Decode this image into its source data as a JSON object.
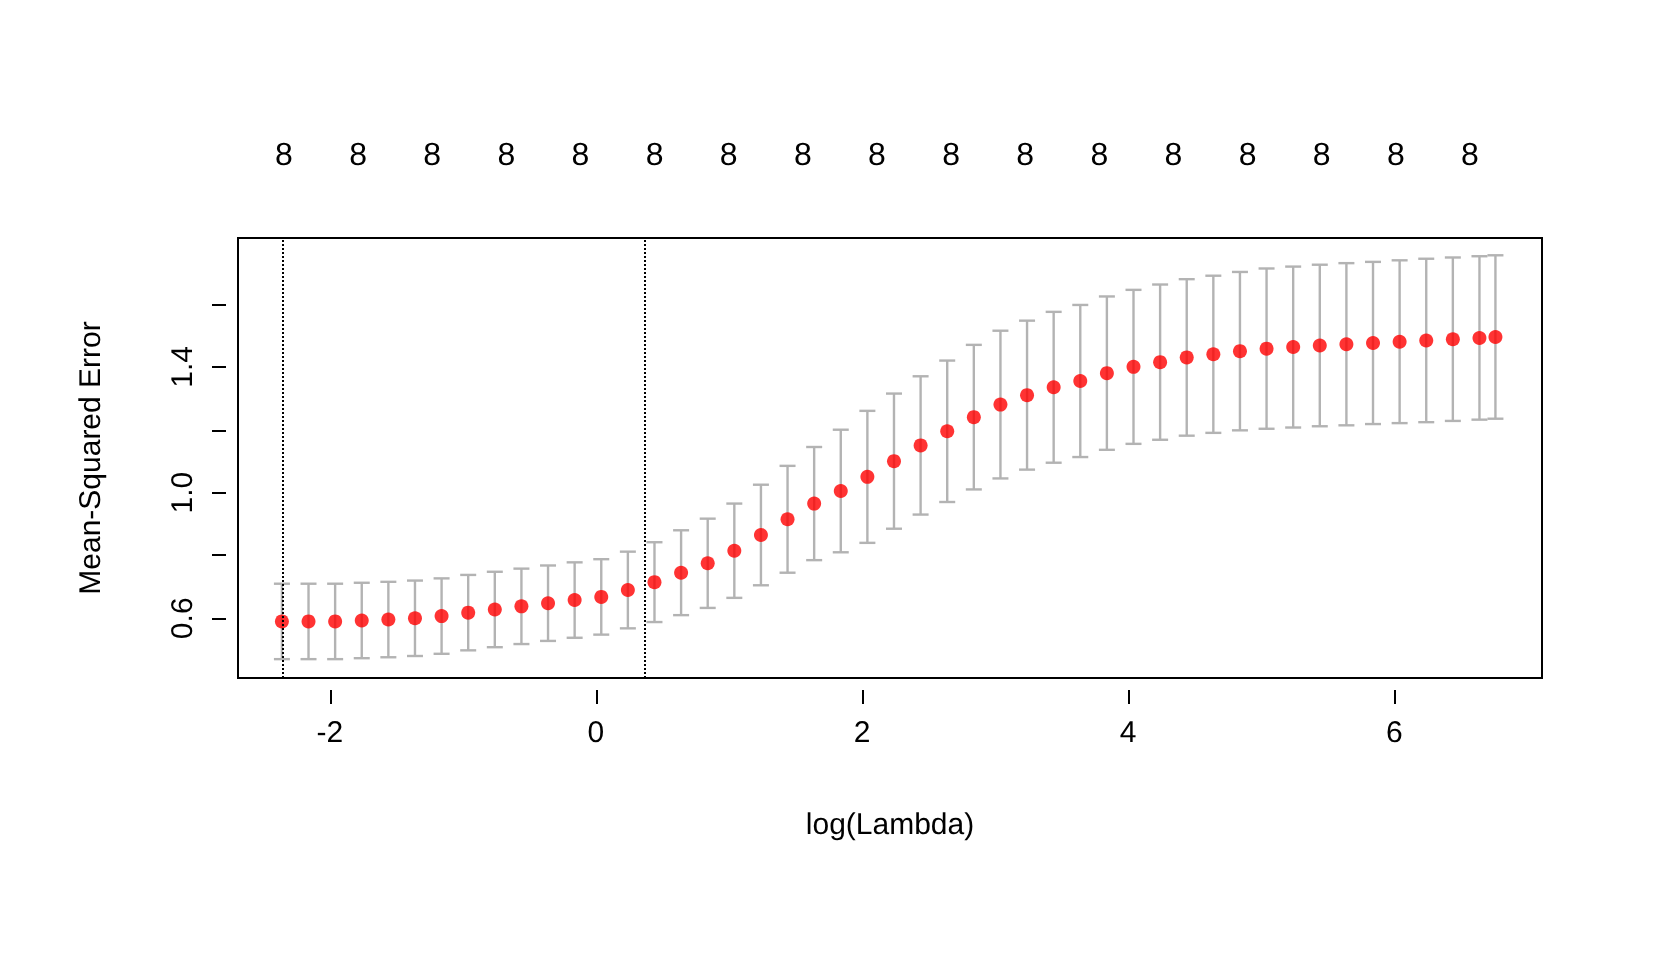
{
  "chart_data": {
    "type": "scatter",
    "xlabel": "log(Lambda)",
    "ylabel": "Mean-Squared Error",
    "x": [
      -2.36,
      -2.16,
      -1.96,
      -1.76,
      -1.56,
      -1.36,
      -1.16,
      -0.96,
      -0.76,
      -0.56,
      -0.36,
      -0.16,
      0.04,
      0.24,
      0.44,
      0.64,
      0.84,
      1.04,
      1.24,
      1.44,
      1.64,
      1.84,
      2.04,
      2.24,
      2.44,
      2.64,
      2.84,
      3.04,
      3.24,
      3.44,
      3.64,
      3.84,
      4.04,
      4.24,
      4.44,
      4.64,
      4.84,
      5.04,
      5.24,
      5.44,
      5.64,
      5.84,
      6.04,
      6.24,
      6.44,
      6.64,
      6.76
    ],
    "values": [
      0.59,
      0.59,
      0.59,
      0.593,
      0.596,
      0.6,
      0.607,
      0.618,
      0.628,
      0.638,
      0.648,
      0.658,
      0.668,
      0.69,
      0.715,
      0.745,
      0.775,
      0.815,
      0.865,
      0.915,
      0.965,
      1.005,
      1.05,
      1.1,
      1.15,
      1.195,
      1.24,
      1.28,
      1.31,
      1.335,
      1.355,
      1.38,
      1.4,
      1.415,
      1.43,
      1.44,
      1.45,
      1.458,
      1.463,
      1.468,
      1.472,
      1.476,
      1.48,
      1.484,
      1.488,
      1.492,
      1.495
    ],
    "errors": [
      0.12,
      0.12,
      0.12,
      0.12,
      0.12,
      0.12,
      0.12,
      0.12,
      0.12,
      0.12,
      0.12,
      0.12,
      0.12,
      0.122,
      0.127,
      0.135,
      0.142,
      0.15,
      0.16,
      0.17,
      0.18,
      0.195,
      0.21,
      0.215,
      0.22,
      0.225,
      0.23,
      0.235,
      0.237,
      0.24,
      0.242,
      0.244,
      0.245,
      0.247,
      0.249,
      0.25,
      0.252,
      0.255,
      0.256,
      0.257,
      0.258,
      0.258,
      0.259,
      0.26,
      0.26,
      0.26,
      0.26
    ],
    "color": "#ff0000",
    "marker": "circle",
    "grid": false,
    "xlim": [
      -2.69,
      7.11
    ],
    "xticks": [
      -2,
      0,
      2,
      4,
      6
    ],
    "ylim": [
      0.41,
      1.81
    ],
    "yticks": [
      0.6,
      {
        "value": 0.8,
        "label": null
      },
      {
        "value": 1.0,
        "label": "1.0"
      },
      {
        "value": 1.2,
        "label": null
      },
      1.4,
      {
        "value": 1.6,
        "label": null
      }
    ],
    "annotations": [
      "8",
      "8",
      "8",
      "8",
      "8",
      "8",
      "8",
      "8",
      "8",
      "8",
      "8",
      "8",
      "8",
      "8",
      "8",
      "8",
      "8"
    ],
    "ref_lines": [
      {
        "axis": "x",
        "value": -2.36,
        "color": "#000000",
        "line_style": "dotted"
      },
      {
        "axis": "x",
        "value": 0.37,
        "color": "#000000",
        "line_style": "dotted"
      }
    ]
  }
}
